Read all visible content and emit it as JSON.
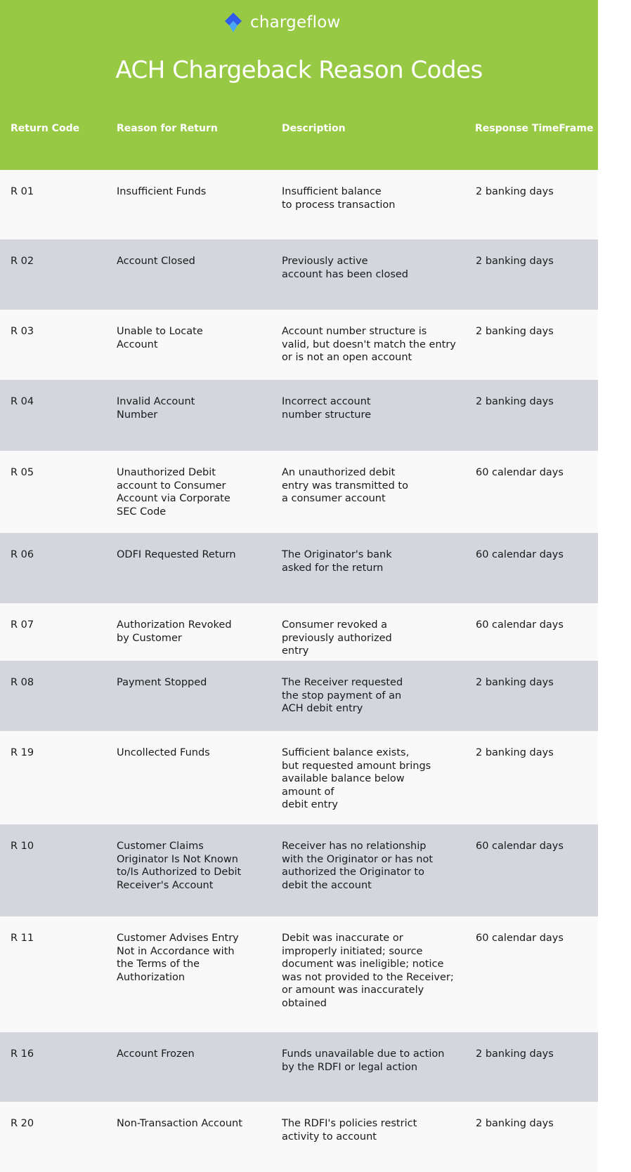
{
  "brand": {
    "logo_text": "chargeflow",
    "accent": "#97c945",
    "logo_colors": [
      "#2f5bea",
      "#4aa8f5"
    ]
  },
  "title": "ACH Chargeback Reason Codes",
  "columns": [
    "Return Code",
    "Reason for Return",
    "Description",
    "Response TimeFrame"
  ],
  "rows": [
    {
      "code": "R 01",
      "reason": "Insufficient Funds",
      "description": "Insufficient balance\nto process transaction",
      "timeframe": "2  banking days"
    },
    {
      "code": "R 02",
      "reason": "Account Closed",
      "description": "Previously active\naccount has been closed",
      "timeframe": "2  banking days"
    },
    {
      "code": "R 03",
      "reason": "Unable to Locate\nAccount",
      "description": "Account number structure is\nvalid, but doesn't match the entry\nor is not an open account",
      "timeframe": "2  banking days"
    },
    {
      "code": "R 04",
      "reason": "Invalid Account\nNumber",
      "description": "Incorrect account\nnumber structure",
      "timeframe": "2  banking days"
    },
    {
      "code": "R 05",
      "reason": "Unauthorized Debit\naccount to Consumer\nAccount  via Corporate\nSEC Code",
      "description": "An unauthorized debit\nentry was transmitted to\na consumer account",
      "timeframe": "60 calendar days"
    },
    {
      "code": "R 06",
      "reason": "ODFI Requested Return",
      "description": "The Originator's bank\nasked for the return",
      "timeframe": "60 calendar days"
    },
    {
      "code": "R 07",
      "reason": "Authorization Revoked\nby Customer",
      "description": "Consumer revoked a\npreviously authorized\nentry",
      "timeframe": "60 calendar days"
    },
    {
      "code": "R 08",
      "reason": "Payment Stopped",
      "description": "The Receiver requested\nthe stop payment of an\nACH debit entry",
      "timeframe": "2 banking days"
    },
    {
      "code": "R 19",
      "reason": "Uncollected Funds",
      "description": "Sufficient balance exists,\nbut requested amount brings\navailable balance below\namount of\ndebit entry",
      "timeframe": "2 banking days"
    },
    {
      "code": "R 10",
      "reason": "Customer Claims\nOriginator Is Not Known\nto/Is Authorized to Debit\nReceiver's Account",
      "description": "Receiver has no relationship\nwith the Originator or has not\nauthorized the Originator to\ndebit the account",
      "timeframe": "60 calendar days"
    },
    {
      "code": "R 11",
      "reason": "Customer Advises Entry\nNot in Accordance with\nthe Terms of the\nAuthorization",
      "description": "Debit was inaccurate or\nimproperly initiated; source\ndocument was ineligible; notice\nwas not provided to the Receiver;\nor amount was inaccurately\nobtained",
      "timeframe": "60 calendar days"
    },
    {
      "code": "R 16",
      "reason": "Account Frozen",
      "description": "Funds unavailable due to action\nby the RDFI or legal action",
      "timeframe": "2 banking days"
    },
    {
      "code": "R 20",
      "reason": "Non-Transaction Account",
      "description": "The RDFI's policies restrict\nactivity to account",
      "timeframe": "2 banking days"
    }
  ]
}
